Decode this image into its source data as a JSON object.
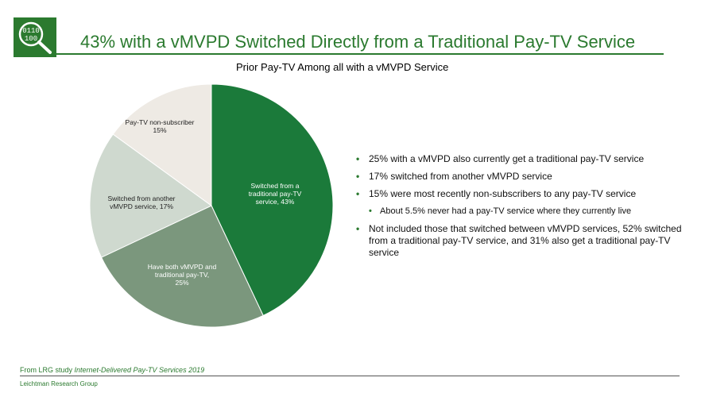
{
  "slide": {
    "title": "43% with a vMVPD Switched Directly from a Traditional Pay-TV Service",
    "logo_text": [
      "0110",
      "100"
    ],
    "accent_color": "#2b7a2f"
  },
  "chart_data": {
    "type": "pie",
    "title": "Prior Pay-TV Among all with a vMVPD Service",
    "slices": [
      {
        "label": "Switched from a traditional pay-TV service, 43%",
        "value": 43,
        "color": "#1b7a3a",
        "label_color": "#ffffff"
      },
      {
        "label": "Have both vMVPD and traditional pay-TV, 25%",
        "value": 25,
        "color": "#7b977d",
        "label_color": "#ffffff"
      },
      {
        "label": "Switched from another vMVPD service, 17%",
        "value": 17,
        "color": "#cfd9cf",
        "label_color": "#222222"
      },
      {
        "label": "Pay-TV non-subscriber 15%",
        "value": 15,
        "color": "#eeeae4",
        "label_color": "#222222"
      }
    ]
  },
  "bullets": [
    {
      "text": "25% with a vMVPD also currently get a traditional pay-TV service",
      "sub": false
    },
    {
      "text": "17% switched from another vMVPD service",
      "sub": false
    },
    {
      "text": "15% were most recently non-subscribers to any pay-TV service",
      "sub": false
    },
    {
      "text": "About 5.5% never had a pay-TV service where they currently live",
      "sub": true
    },
    {
      "text": "Not included those that switched between vMVPD services, 52% switched from a traditional pay-TV service, and 31% also get a traditional pay-TV service",
      "sub": false
    }
  ],
  "footer": {
    "source_prefix": "From LRG study ",
    "source_study": "Internet-Delivered Pay-TV Services 2019",
    "organization": "Leichtman Research Group"
  }
}
